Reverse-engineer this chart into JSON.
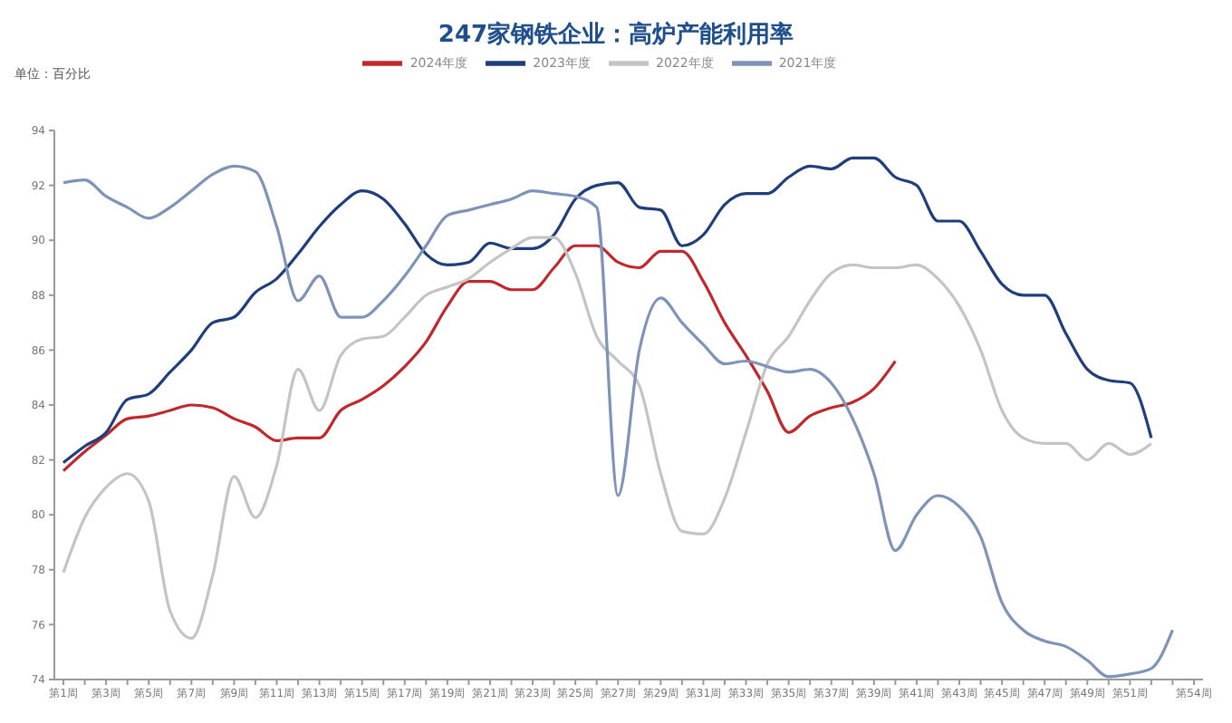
{
  "chart_data": {
    "type": "line",
    "title": "247家钢铁企业：高炉产能利用率",
    "ylabel": "单位：百分比",
    "categories": [
      "第1周",
      null,
      "第3周",
      null,
      "第5周",
      null,
      "第7周",
      null,
      "第9周",
      null,
      "第11周",
      null,
      "第13周",
      null,
      "第15周",
      null,
      "第17周",
      null,
      "第19周",
      null,
      "第21周",
      null,
      "第23周",
      null,
      "第25周",
      null,
      "第27周",
      null,
      "第29周",
      null,
      "第31周",
      null,
      "第33周",
      null,
      "第35周",
      null,
      "第37周",
      null,
      "第39周",
      null,
      "第41周",
      null,
      "第43周",
      null,
      "第45周",
      null,
      "第47周",
      null,
      "第49周",
      null,
      "第51周",
      null,
      null,
      "第54周"
    ],
    "series": [
      {
        "name": "2024年度",
        "color": "#c0282d",
        "values": [
          81.6,
          82.3,
          82.9,
          83.5,
          83.6,
          83.8,
          84.0,
          83.9,
          83.5,
          83.2,
          82.7,
          82.8,
          82.8,
          83.8,
          84.2,
          84.7,
          85.4,
          86.3,
          87.6,
          88.5,
          88.5,
          88.2,
          88.2,
          89.0,
          89.8,
          89.8,
          89.2,
          89.0,
          89.6,
          89.6,
          88.5,
          87.0,
          85.8,
          84.5,
          83.0,
          83.6,
          83.9,
          84.1,
          84.6,
          85.6,
          null,
          null,
          null,
          null,
          null,
          null,
          null,
          null,
          null,
          null,
          null,
          null,
          null,
          null
        ]
      },
      {
        "name": "2023年度",
        "color": "#1f3e7a",
        "values": [
          81.9,
          82.5,
          83.0,
          84.2,
          84.4,
          85.2,
          86.0,
          87.0,
          87.2,
          88.1,
          88.6,
          89.5,
          90.5,
          91.3,
          91.8,
          91.5,
          90.6,
          89.5,
          89.1,
          89.2,
          89.9,
          89.7,
          89.7,
          90.2,
          91.5,
          92.0,
          92.1,
          91.2,
          91.1,
          89.8,
          90.2,
          91.3,
          91.7,
          91.7,
          92.3,
          92.7,
          92.6,
          93.0,
          93.0,
          92.3,
          92.0,
          90.7,
          90.7,
          89.6,
          88.4,
          88.0,
          88.0,
          86.6,
          85.3,
          84.9,
          84.8,
          82.8,
          null,
          null
        ]
      },
      {
        "name": "2022年度",
        "color": "#c4c4c4",
        "values": [
          77.9,
          79.9,
          81.0,
          81.5,
          80.5,
          76.5,
          75.5,
          77.8,
          81.4,
          79.9,
          81.8,
          85.3,
          83.8,
          85.8,
          86.4,
          86.5,
          87.2,
          88.0,
          88.3,
          88.6,
          89.2,
          89.7,
          90.1,
          90.1,
          88.8,
          86.5,
          85.6,
          84.7,
          81.5,
          79.4,
          79.3,
          80.6,
          83.0,
          85.5,
          86.5,
          87.8,
          88.8,
          89.1,
          89.0,
          89.0,
          89.1,
          88.6,
          87.6,
          86.0,
          83.8,
          82.8,
          82.6,
          82.6,
          82.0,
          82.6,
          82.2,
          82.6,
          null,
          null
        ]
      },
      {
        "name": "2021年度",
        "color": "#7f93b8",
        "values": [
          92.1,
          92.2,
          91.6,
          91.2,
          90.8,
          91.2,
          91.8,
          92.4,
          92.7,
          92.5,
          90.5,
          87.8,
          88.7,
          87.2,
          87.2,
          87.8,
          88.7,
          89.8,
          90.9,
          91.1,
          91.3,
          91.5,
          91.8,
          91.7,
          91.6,
          91.2,
          80.7,
          86.0,
          87.9,
          87.0,
          86.2,
          85.5,
          85.6,
          85.4,
          85.2,
          85.3,
          84.8,
          83.5,
          81.5,
          78.7,
          80.0,
          80.7,
          80.3,
          79.2,
          76.8,
          75.8,
          75.4,
          75.2,
          74.7,
          74.1,
          74.2,
          74.4,
          75.8,
          null
        ]
      }
    ],
    "ylim": [
      74,
      94
    ],
    "yticks": [
      74,
      76,
      78,
      80,
      82,
      84,
      86,
      88,
      90,
      92,
      94
    ],
    "grid": false,
    "legend": "top",
    "marker": "none",
    "line_style": "solid"
  }
}
